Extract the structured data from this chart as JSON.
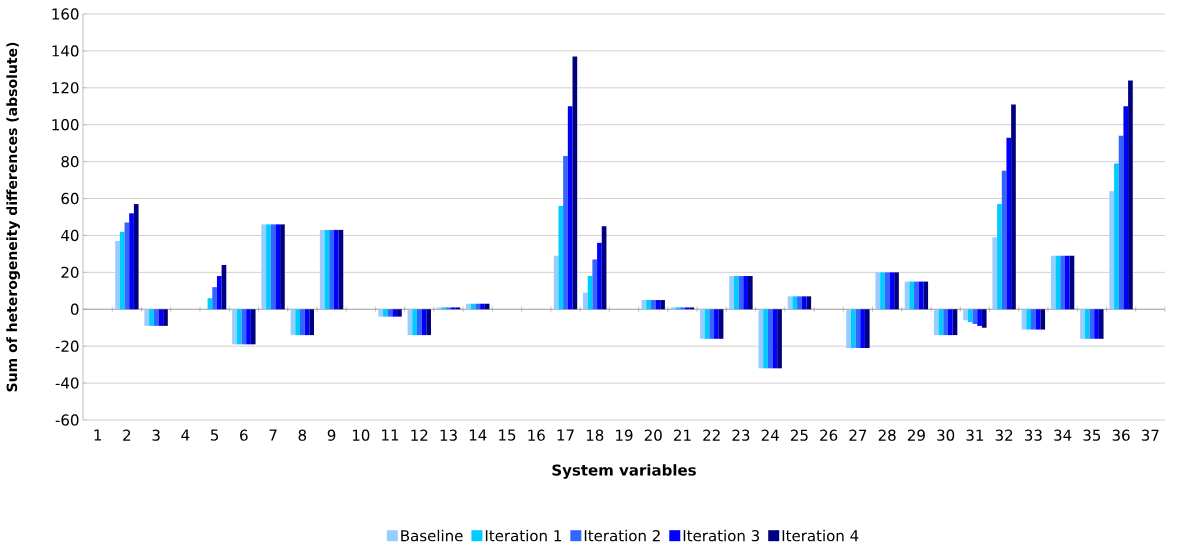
{
  "chart_data": {
    "type": "bar",
    "xlabel": "System variables",
    "ylabel": "Sum of heterogeneity differences (absolute)",
    "categories": [
      "1",
      "2",
      "3",
      "4",
      "5",
      "6",
      "7",
      "8",
      "9",
      "10",
      "11",
      "12",
      "13",
      "14",
      "15",
      "16",
      "17",
      "18",
      "19",
      "20",
      "21",
      "22",
      "23",
      "24",
      "25",
      "26",
      "27",
      "28",
      "29",
      "30",
      "31",
      "32",
      "33",
      "34",
      "35",
      "36",
      "37"
    ],
    "series": [
      {
        "name": "Baseline",
        "color": "#99ccff",
        "values": [
          0,
          37,
          -9,
          0,
          0,
          -19,
          46,
          -14,
          43,
          0,
          -4,
          -14,
          1,
          3,
          0,
          0,
          29,
          9,
          0,
          5,
          1,
          -16,
          18,
          -32,
          7,
          0,
          -21,
          20,
          15,
          -14,
          -6,
          39,
          -11,
          29,
          -16,
          64,
          0
        ]
      },
      {
        "name": "Iteration 1",
        "color": "#00ccff",
        "values": [
          0,
          42,
          -9,
          0,
          6,
          -19,
          46,
          -14,
          43,
          0,
          -4,
          -14,
          1,
          3,
          0,
          0,
          56,
          18,
          0,
          5,
          1,
          -16,
          18,
          -32,
          7,
          0,
          -21,
          20,
          15,
          -14,
          -7,
          57,
          -11,
          29,
          -16,
          79,
          0
        ]
      },
      {
        "name": "Iteration 2",
        "color": "#3366ff",
        "values": [
          0,
          47,
          -9,
          0,
          12,
          -19,
          46,
          -14,
          43,
          0,
          -4,
          -14,
          1,
          3,
          0,
          0,
          83,
          27,
          0,
          5,
          1,
          -16,
          18,
          -32,
          7,
          0,
          -21,
          20,
          15,
          -14,
          -8,
          75,
          -11,
          29,
          -16,
          94,
          0
        ]
      },
      {
        "name": "Iteration 3",
        "color": "#0000ff",
        "values": [
          0,
          52,
          -9,
          0,
          18,
          -19,
          46,
          -14,
          43,
          0,
          -4,
          -14,
          1,
          3,
          0,
          0,
          110,
          36,
          0,
          5,
          1,
          -16,
          18,
          -32,
          7,
          0,
          -21,
          20,
          15,
          -14,
          -9,
          93,
          -11,
          29,
          -16,
          110,
          0
        ]
      },
      {
        "name": "Iteration 4",
        "color": "#000080",
        "values": [
          0,
          57,
          -9,
          0,
          24,
          -19,
          46,
          -14,
          43,
          0,
          -4,
          -14,
          1,
          3,
          0,
          0,
          137,
          45,
          0,
          5,
          1,
          -16,
          18,
          -32,
          7,
          0,
          -21,
          20,
          15,
          -14,
          -10,
          111,
          -11,
          29,
          -16,
          124,
          0
        ]
      }
    ],
    "ylim": [
      -60,
      160
    ],
    "yticks": [
      -60,
      -40,
      -20,
      0,
      20,
      40,
      60,
      80,
      100,
      120,
      140,
      160
    ],
    "grid": "y",
    "legend": "bottom"
  }
}
